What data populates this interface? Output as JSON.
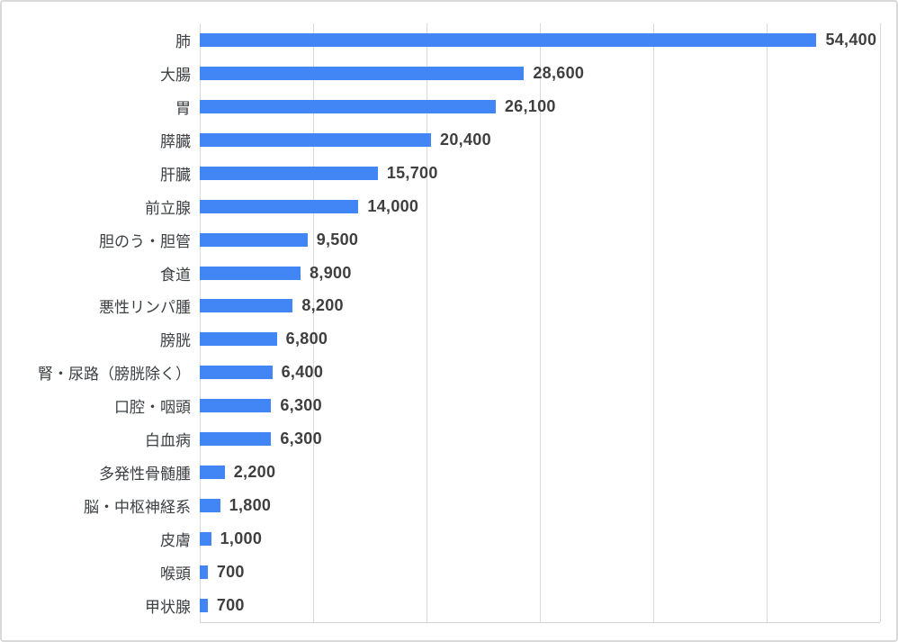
{
  "chart_data": {
    "type": "bar",
    "orientation": "horizontal",
    "title": "",
    "xlabel": "",
    "ylabel": "",
    "xlim": [
      0,
      60000
    ],
    "grid_interval": 10000,
    "gridlines": "vertical gridlines every 10,000 from 0 to 60,000, no axis tick labels shown",
    "legend_position": "none",
    "categories": [
      "肺",
      "大腸",
      "胃",
      "膵臓",
      "肝臓",
      "前立腺",
      "胆のう・胆管",
      "食道",
      "悪性リンパ腫",
      "膀胱",
      "腎・尿路（膀胱除く）",
      "口腔・咽頭",
      "白血病",
      "多発性骨髄腫",
      "脳・中枢神経系",
      "皮膚",
      "喉頭",
      "甲状腺"
    ],
    "values": [
      54400,
      28600,
      26100,
      20400,
      15700,
      14000,
      9500,
      8900,
      8200,
      6800,
      6400,
      6300,
      6300,
      2200,
      1800,
      1000,
      700,
      700
    ],
    "value_labels": [
      "54,400",
      "28,600",
      "26,100",
      "20,400",
      "15,700",
      "14,000",
      "9,500",
      "8,900",
      "8,200",
      "6,800",
      "6,400",
      "6,300",
      "6,300",
      "2,200",
      "1,800",
      "1,000",
      "700",
      "700"
    ]
  },
  "colors": {
    "bar": "#4285F4",
    "gridline": "#D9D9D9",
    "axis_baseline": "#D3D3D3",
    "category_label": "#3C4043",
    "value_label": "#3F3F3F",
    "border": "#D9D9D9",
    "background": "#FFFFFF"
  }
}
